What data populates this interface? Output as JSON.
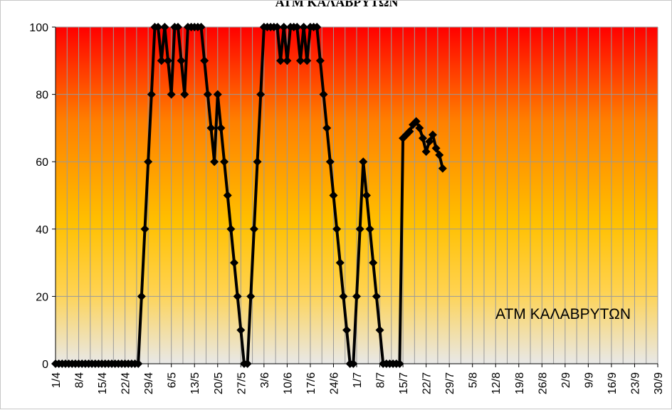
{
  "chart_data": {
    "type": "line",
    "title": "ΑΤΜ ΚΑΛΑΒΡΥΤΩΝ",
    "annotation": "ΑΤΜ ΚΑΛΑΒΡΥΤΩΝ",
    "xlabel": "",
    "ylabel": "",
    "x_tick_labels": [
      "1/4",
      "8/4",
      "15/4",
      "22/4",
      "29/4",
      "6/5",
      "13/5",
      "20/5",
      "27/5",
      "3/6",
      "10/6",
      "17/6",
      "24/6",
      "1/7",
      "8/7",
      "15/7",
      "22/7",
      "29/7",
      "5/8",
      "12/8",
      "19/8",
      "26/8",
      "2/9",
      "9/9",
      "16/9",
      "23/9",
      "30/9"
    ],
    "y_ticks": [
      0,
      20,
      40,
      60,
      80,
      100
    ],
    "ylim": [
      0,
      100
    ],
    "x_range_days": [
      0,
      182
    ],
    "grid": true,
    "line_color": "#000000",
    "marker": "diamond",
    "background_gradient": [
      "#ff0000",
      "#ff8000",
      "#ffc000",
      "#ffd24d",
      "#e8e8e8"
    ],
    "series": [
      {
        "x": [
          0,
          1,
          2,
          3,
          4,
          5,
          6,
          7,
          8,
          9,
          10,
          11,
          12,
          13,
          14,
          15,
          16,
          17,
          18,
          19,
          20,
          21,
          22,
          23,
          24,
          25,
          26,
          27,
          28,
          29,
          30,
          31,
          32,
          33,
          34,
          35,
          36,
          37,
          38,
          39,
          40,
          41,
          42,
          43,
          44,
          45,
          46,
          47,
          48,
          49,
          50,
          51,
          52,
          53,
          54,
          55,
          56,
          57,
          58,
          59,
          60,
          61,
          62,
          63,
          64,
          65,
          66,
          67,
          68,
          69,
          70,
          71,
          72,
          73,
          74,
          75,
          76,
          77,
          78,
          79,
          80,
          81,
          82,
          83,
          84,
          85,
          86,
          87,
          88,
          89,
          90,
          91,
          92,
          93,
          94,
          95,
          96,
          97,
          98,
          99,
          100,
          101,
          102,
          103,
          104,
          105,
          106,
          107,
          108,
          109,
          110,
          111,
          112,
          113,
          114,
          115,
          116,
          117
        ],
        "values": [
          0,
          0,
          0,
          0,
          0,
          0,
          0,
          0,
          0,
          0,
          0,
          0,
          0,
          0,
          0,
          0,
          0,
          0,
          0,
          0,
          0,
          0,
          0,
          0,
          0,
          0,
          20,
          40,
          60,
          80,
          100,
          100,
          90,
          100,
          90,
          80,
          100,
          100,
          90,
          80,
          100,
          100,
          100,
          100,
          100,
          90,
          80,
          70,
          60,
          80,
          70,
          60,
          50,
          40,
          30,
          20,
          10,
          0,
          0,
          20,
          40,
          60,
          80,
          100,
          100,
          100,
          100,
          100,
          90,
          100,
          90,
          100,
          100,
          100,
          90,
          100,
          90,
          100,
          100,
          100,
          90,
          80,
          70,
          60,
          50,
          40,
          30,
          20,
          10,
          0,
          0,
          20,
          40,
          60,
          50,
          40,
          30,
          20,
          10,
          0,
          0,
          0,
          0,
          0,
          0,
          67,
          68,
          69,
          71,
          72,
          70,
          67,
          63,
          66,
          68,
          64,
          62,
          58
        ]
      }
    ]
  }
}
